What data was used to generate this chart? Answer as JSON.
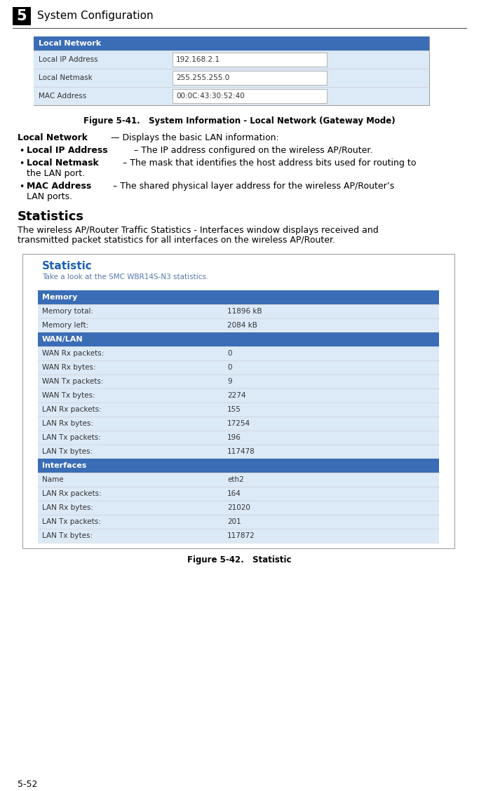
{
  "page_bg": "#ffffff",
  "header_num": "5",
  "header_text": "System Configuration",
  "local_network_table": {
    "title": "Local Network",
    "title_bg": "#3a6db5",
    "title_color": "#ffffff",
    "row_bg": "#dce9f7",
    "input_bg": "#ffffff",
    "input_border": "#aaaaaa",
    "rows": [
      {
        "label": "Local IP Address",
        "value": "192.168.2.1"
      },
      {
        "label": "Local Netmask",
        "value": "255.255.255.0"
      },
      {
        "label": "MAC Address",
        "value": "00:0C:43:30:52:40"
      }
    ]
  },
  "fig41_caption": "Figure 5-41.   System Information - Local Network (Gateway Mode)",
  "statistics_heading": "Statistics",
  "statistics_body_line1": "The wireless AP/Router Traffic Statistics - Interfaces window displays received and",
  "statistics_body_line2": "transmitted packet statistics for all interfaces on the wireless AP/Router.",
  "statistic_table": {
    "title": "Statistic",
    "title_color": "#1e5fb3",
    "subtitle": "Take a look at the SMC WBR14S-N3 statistics.",
    "subtitle_color": "#5577aa",
    "sections": [
      {
        "header": "Memory",
        "header_bg": "#3a6db5",
        "header_color": "#ffffff",
        "rows": [
          {
            "label": "Memory total:",
            "value": "11896 kB"
          },
          {
            "label": "Memory left:",
            "value": "2084 kB"
          }
        ]
      },
      {
        "header": "WAN/LAN",
        "header_bg": "#3a6db5",
        "header_color": "#ffffff",
        "rows": [
          {
            "label": "WAN Rx packets:",
            "value": "0"
          },
          {
            "label": "WAN Rx bytes:",
            "value": "0"
          },
          {
            "label": "WAN Tx packets:",
            "value": "9"
          },
          {
            "label": "WAN Tx bytes:",
            "value": "2274"
          },
          {
            "label": "LAN Rx packets:",
            "value": "155"
          },
          {
            "label": "LAN Rx bytes:",
            "value": "17254"
          },
          {
            "label": "LAN Tx packets:",
            "value": "196"
          },
          {
            "label": "LAN Tx bytes:",
            "value": "117478"
          }
        ]
      },
      {
        "header": "Interfaces",
        "header_bg": "#3a6db5",
        "header_color": "#ffffff",
        "rows": [
          {
            "label": "Name",
            "value": "eth2"
          },
          {
            "label": "LAN Rx packets:",
            "value": "164"
          },
          {
            "label": "LAN Rx bytes:",
            "value": "21020"
          },
          {
            "label": "LAN Tx packets:",
            "value": "201"
          },
          {
            "label": "LAN Tx bytes:",
            "value": "117872"
          }
        ]
      }
    ]
  },
  "fig42_caption": "Figure 5-42.   Statistic",
  "footer_text": "5-52",
  "table_row_light": "#dce9f7",
  "table_row_divider": "#cccccc",
  "outer_border": "#999999"
}
